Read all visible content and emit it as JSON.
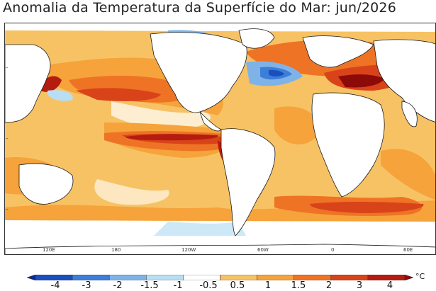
{
  "title": "Anomalia da Temperatura da Superfície do Mar: jun/2026",
  "lon_labels": [
    "120E",
    "180",
    "120W",
    "60W",
    "0",
    "60E"
  ],
  "colorbar": {
    "labels": [
      "-4",
      "-3",
      "-2",
      "-1.5",
      "-1",
      "-0.5",
      "0.5",
      "1",
      "1.5",
      "2",
      "3",
      "4"
    ],
    "colors": [
      "#0a2a8c",
      "#1a4fc0",
      "#3d7ed8",
      "#7fb3e8",
      "#b8def4",
      "#ffffff",
      "#f7c264",
      "#f5a33a",
      "#ee7325",
      "#d9431a",
      "#b51c10",
      "#8c0a08"
    ],
    "unit": "°C"
  },
  "colors": {
    "land": "#ffffff",
    "coast": "#1a1a1a",
    "warm_pale": "#f7c264",
    "warm": "#f5a33a",
    "warm_strong": "#ee7325",
    "hot": "#d9431a",
    "very_hot": "#b51c10",
    "extreme": "#8c0a08",
    "cool_pale": "#b8def4",
    "cool": "#7fb3e8",
    "cold": "#3d7ed8",
    "very_cold": "#1a4fc0"
  }
}
